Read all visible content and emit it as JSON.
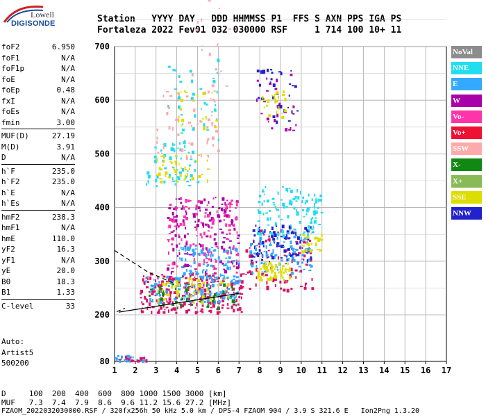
{
  "logo": {
    "line1": "Lowell",
    "line2": "DIGISONDE"
  },
  "header": {
    "line1": "Station   YYYY DAY   DDD HHMMSS P1  FFS S AXN PPS IGA PS",
    "line2": "Fortaleza 2022 Fev01 032 030000 RSF     1 714 100 10+ 11"
  },
  "params": {
    "group1": [
      {
        "k": "foF2",
        "v": "6.950"
      },
      {
        "k": "foF1",
        "v": "N/A"
      },
      {
        "k": "foF1p",
        "v": "N/A"
      },
      {
        "k": "foE",
        "v": "N/A"
      },
      {
        "k": "foEp",
        "v": "0.48"
      },
      {
        "k": "fxI",
        "v": "N/A"
      },
      {
        "k": "foEs",
        "v": "N/A"
      },
      {
        "k": "fmin",
        "v": "3.00"
      }
    ],
    "group2": [
      {
        "k": "MUF(D)",
        "v": "27.19"
      },
      {
        "k": "M(D)",
        "v": "3.91"
      },
      {
        "k": "D",
        "v": "N/A"
      }
    ],
    "group3": [
      {
        "k": "h`F",
        "v": "235.0"
      },
      {
        "k": "h`F2",
        "v": "235.0"
      },
      {
        "k": "h`E",
        "v": "N/A"
      },
      {
        "k": "h`Es",
        "v": "N/A"
      }
    ],
    "group4": [
      {
        "k": "hmF2",
        "v": "238.3"
      },
      {
        "k": "hmF1",
        "v": "N/A"
      },
      {
        "k": "hmE",
        "v": "110.0"
      },
      {
        "k": "yF2",
        "v": "16.3"
      },
      {
        "k": "yF1",
        "v": "N/A"
      },
      {
        "k": "yE",
        "v": "20.0"
      },
      {
        "k": "B0",
        "v": "18.3"
      },
      {
        "k": "B1",
        "v": "1.33"
      }
    ],
    "group5": [
      {
        "k": "C-level",
        "v": "33"
      }
    ]
  },
  "auto": {
    "l1": "Auto:",
    "l2": "Artist5",
    "l3": "500200"
  },
  "legend": [
    {
      "label": "NoVal",
      "color": "#8c8c8c"
    },
    {
      "label": "NNE",
      "color": "#22ddee"
    },
    {
      "label": "E",
      "color": "#33aaff"
    },
    {
      "label": "W",
      "color": "#aa00aa"
    },
    {
      "label": "Vo-",
      "color": "#ff33aa"
    },
    {
      "label": "Vo+",
      "color": "#ee1133"
    },
    {
      "label": "SSW",
      "color": "#ffaaaa"
    },
    {
      "label": "X-",
      "color": "#118811"
    },
    {
      "label": "X+",
      "color": "#88bb55"
    },
    {
      "label": "SSE",
      "color": "#dddd00"
    },
    {
      "label": "NNW",
      "color": "#2222cc"
    }
  ],
  "bottom": {
    "line1": "D     100  200  400  600  800 1000 1500 3000 [km]",
    "line2": "MUF   7.3  7.4  7.9  8.6  9.6 11.2 15.6 27.2 [MHz]"
  },
  "footer": "FZAOM_2022032030000.RSF / 320fx256h 50 kHz 5.0 km / DPS-4 FZAOM 904 / 3.9 S 321.6 E   Ion2Png 1.3.20",
  "chart_data": {
    "type": "scatter",
    "xlim": [
      1,
      17
    ],
    "ylim": [
      80,
      900
    ],
    "xticks": [
      "1",
      "2",
      "3",
      "4",
      "5",
      "6",
      "7",
      "8",
      "9",
      "10",
      "11",
      "12",
      "13",
      "14",
      "15",
      "16",
      "17"
    ],
    "yticks": [
      "80",
      "200",
      "300",
      "400",
      "500",
      "600",
      "700",
      "800",
      "900"
    ],
    "grid": true,
    "clusters": [
      {
        "x0": 2.2,
        "x1": 7.2,
        "y0": 205,
        "y1": 280,
        "color": "#dd1166",
        "n": 260
      },
      {
        "x0": 2.3,
        "x1": 7.0,
        "y0": 225,
        "y1": 275,
        "color": "#33aaff",
        "n": 120
      },
      {
        "x0": 2.5,
        "x1": 7.0,
        "y0": 215,
        "y1": 260,
        "color": "#118811",
        "n": 50
      },
      {
        "x0": 3.0,
        "x1": 6.5,
        "y0": 225,
        "y1": 270,
        "color": "#dddd00",
        "n": 50
      },
      {
        "x0": 3.5,
        "x1": 7.0,
        "y0": 280,
        "y1": 420,
        "color": "#aa00aa",
        "n": 140
      },
      {
        "x0": 3.5,
        "x1": 7.0,
        "y0": 280,
        "y1": 420,
        "color": "#ff33aa",
        "n": 110
      },
      {
        "x0": 4.0,
        "x1": 7.0,
        "y0": 270,
        "y1": 330,
        "color": "#33aaff",
        "n": 90
      },
      {
        "x0": 7.3,
        "x1": 10.5,
        "y0": 245,
        "y1": 360,
        "color": "#dd1166",
        "n": 90
      },
      {
        "x0": 7.5,
        "x1": 10.5,
        "y0": 300,
        "y1": 370,
        "color": "#2222cc",
        "n": 90
      },
      {
        "x0": 7.5,
        "x1": 10.5,
        "y0": 280,
        "y1": 360,
        "color": "#33aaff",
        "n": 90
      },
      {
        "x0": 7.8,
        "x1": 9.5,
        "y0": 265,
        "y1": 300,
        "color": "#dddd00",
        "n": 60
      },
      {
        "x0": 10.0,
        "x1": 11.0,
        "y0": 320,
        "y1": 355,
        "color": "#dddd00",
        "n": 25
      },
      {
        "x0": 7.8,
        "x1": 11.0,
        "y0": 350,
        "y1": 440,
        "color": "#22ddee",
        "n": 110
      },
      {
        "x0": 2.5,
        "x1": 5.0,
        "y0": 440,
        "y1": 520,
        "color": "#22ddee",
        "n": 60
      },
      {
        "x0": 3.0,
        "x1": 5.5,
        "y0": 450,
        "y1": 500,
        "color": "#dddd00",
        "n": 40
      },
      {
        "x0": 3.0,
        "x1": 6.0,
        "y0": 490,
        "y1": 620,
        "color": "#ffaaaa",
        "n": 60
      },
      {
        "x0": 3.5,
        "x1": 6.0,
        "y0": 520,
        "y1": 680,
        "color": "#22ddee",
        "n": 40
      },
      {
        "x0": 4.0,
        "x1": 6.0,
        "y0": 550,
        "y1": 620,
        "color": "#dddd00",
        "n": 20
      },
      {
        "x0": 4.5,
        "x1": 6.5,
        "y0": 620,
        "y1": 840,
        "color": "#ffaaaa",
        "n": 25
      },
      {
        "x0": 7.8,
        "x1": 9.8,
        "y0": 560,
        "y1": 660,
        "color": "#2222cc",
        "n": 35
      },
      {
        "x0": 7.8,
        "x1": 9.8,
        "y0": 540,
        "y1": 650,
        "color": "#aa00aa",
        "n": 25
      },
      {
        "x0": 8.0,
        "x1": 9.2,
        "y0": 560,
        "y1": 620,
        "color": "#dddd00",
        "n": 25
      },
      {
        "x0": 1.0,
        "x1": 2.8,
        "y0": 83,
        "y1": 97,
        "color": "#33aaff",
        "n": 30
      },
      {
        "x0": 1.2,
        "x1": 2.6,
        "y0": 83,
        "y1": 95,
        "color": "#dd1166",
        "n": 15
      }
    ],
    "traces": [
      {
        "points": [
          [
            1.2,
            205
          ],
          [
            7.0,
            240
          ]
        ]
      },
      {
        "points": [
          [
            1.0,
            320
          ],
          [
            1.6,
            305
          ],
          [
            2.6,
            280
          ],
          [
            3.8,
            260
          ]
        ],
        "dashed": true
      },
      {
        "points": [
          [
            1.1,
            206
          ],
          [
            1.5,
            212
          ]
        ],
        "dashed": true
      }
    ]
  }
}
